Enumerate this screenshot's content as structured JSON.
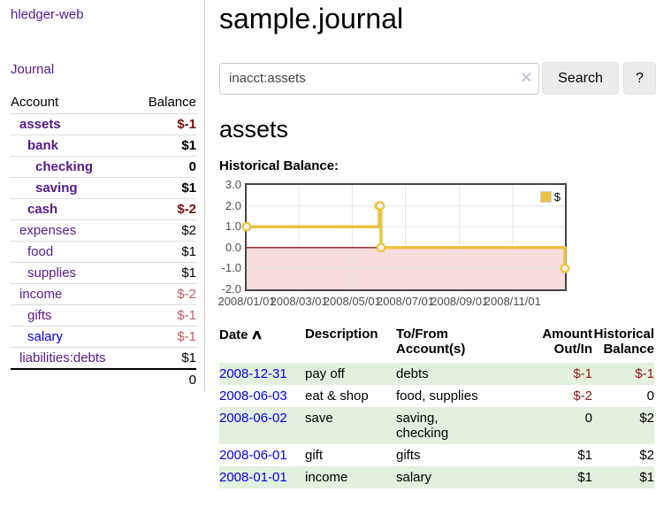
{
  "app": {
    "title": "hledger-web"
  },
  "nav": {
    "journal": "Journal"
  },
  "sidebar": {
    "account_header": "Account",
    "balance_header": "Balance",
    "accounts": [
      {
        "name": "assets",
        "balance": "$-1"
      },
      {
        "name": "bank",
        "balance": "$1"
      },
      {
        "name": "checking",
        "balance": "0"
      },
      {
        "name": "saving",
        "balance": "$1"
      },
      {
        "name": "cash",
        "balance": "$-2"
      },
      {
        "name": "expenses",
        "balance": "$2"
      },
      {
        "name": "food",
        "balance": "$1"
      },
      {
        "name": "supplies",
        "balance": "$1"
      },
      {
        "name": "income",
        "balance": "$-2"
      },
      {
        "name": "gifts",
        "balance": "$-1"
      },
      {
        "name": "salary",
        "balance": "$-1"
      },
      {
        "name": "liabilities:debts",
        "balance": "$1"
      }
    ],
    "total": "0"
  },
  "header": {
    "title": "sample.journal"
  },
  "search": {
    "value": "inacct:assets",
    "clear_icon": "✕",
    "button_label": "Search",
    "help_label": "?"
  },
  "register": {
    "heading": "assets",
    "chart_title": "Historical Balance:"
  },
  "chart_data": {
    "type": "line",
    "title": "Historical Balance:",
    "step": true,
    "xlim": [
      "2008-01-01",
      "2008-12-31"
    ],
    "ylim": [
      -2,
      3
    ],
    "y_ticks": [
      "3.0",
      "2.0",
      "1.0",
      "0.0",
      "-1.0",
      "-2.0"
    ],
    "x_ticks": [
      "2008/01/01",
      "2008/03/01",
      "2008/05/01",
      "2008/07/01",
      "2008/09/01",
      "2008/11/01"
    ],
    "series": [
      {
        "name": "$",
        "color": "#edc240",
        "points": [
          [
            "2008-01-01",
            1
          ],
          [
            "2008-06-01",
            2
          ],
          [
            "2008-06-02",
            2
          ],
          [
            "2008-06-03",
            0
          ],
          [
            "2008-12-31",
            -1
          ]
        ]
      }
    ],
    "grid_color": "#e6e6e6",
    "negative_region_color": "#f9dcdc",
    "zero_line_color": "#8b1a1a",
    "legend_position": "top-right"
  },
  "table": {
    "headers": {
      "date": "Date",
      "sort_icon": "∧",
      "description": "Description",
      "accounts": "To/From\nAccount(s)",
      "amount": "Amount\nOut/In",
      "balance": "Historical\nBalance"
    },
    "rows": [
      {
        "date": "2008-12-31",
        "description": "pay off",
        "accounts": "debts",
        "amount": "$-1",
        "balance": "$-1"
      },
      {
        "date": "2008-06-03",
        "description": "eat & shop",
        "accounts": "food, supplies",
        "amount": "$-2",
        "balance": "0"
      },
      {
        "date": "2008-06-02",
        "description": "save",
        "accounts": "saving, checking",
        "amount": "0",
        "balance": "$2"
      },
      {
        "date": "2008-06-01",
        "description": "gift",
        "accounts": "gifts",
        "amount": "$1",
        "balance": "$2"
      },
      {
        "date": "2008-01-01",
        "description": "income",
        "accounts": "salary",
        "amount": "$1",
        "balance": "$1"
      }
    ]
  }
}
